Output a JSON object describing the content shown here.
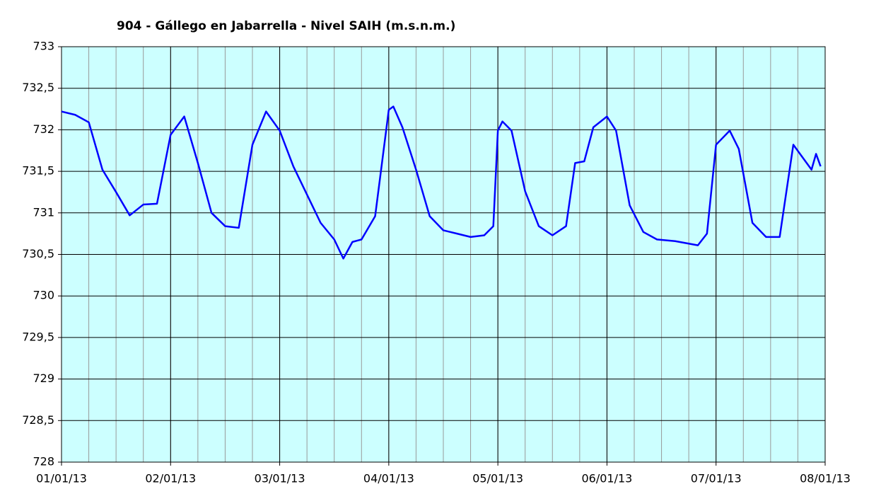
{
  "chart_data": {
    "type": "line",
    "title": "904 - Gállego en Jabarrella - Nivel SAIH (m.s.n.m.)",
    "x": [
      "2013-01-01T00:00",
      "2013-01-01T03:00",
      "2013-01-01T06:00",
      "2013-01-01T09:00",
      "2013-01-01T12:00",
      "2013-01-01T15:00",
      "2013-01-01T18:00",
      "2013-01-01T21:00",
      "2013-01-02T00:00",
      "2013-01-02T03:00",
      "2013-01-02T06:00",
      "2013-01-02T09:00",
      "2013-01-02T12:00",
      "2013-01-02T15:00",
      "2013-01-02T18:00",
      "2013-01-02T21:00",
      "2013-01-03T00:00",
      "2013-01-03T03:00",
      "2013-01-03T06:00",
      "2013-01-03T09:00",
      "2013-01-03T12:00",
      "2013-01-03T14:00",
      "2013-01-03T16:00",
      "2013-01-03T18:00",
      "2013-01-03T21:00",
      "2013-01-04T00:00",
      "2013-01-04T01:00",
      "2013-01-04T03:00",
      "2013-01-04T06:00",
      "2013-01-04T09:00",
      "2013-01-04T12:00",
      "2013-01-04T15:00",
      "2013-01-04T18:00",
      "2013-01-04T21:00",
      "2013-01-04T23:00",
      "2013-01-05T00:00",
      "2013-01-05T01:00",
      "2013-01-05T03:00",
      "2013-01-05T06:00",
      "2013-01-05T09:00",
      "2013-01-05T12:00",
      "2013-01-05T15:00",
      "2013-01-05T17:00",
      "2013-01-05T19:00",
      "2013-01-05T21:00",
      "2013-01-06T00:00",
      "2013-01-06T02:00",
      "2013-01-06T05:00",
      "2013-01-06T08:00",
      "2013-01-06T11:00",
      "2013-01-06T15:00",
      "2013-01-06T20:00",
      "2013-01-06T22:00",
      "2013-01-07T00:00",
      "2013-01-07T03:00",
      "2013-01-07T05:00",
      "2013-01-07T08:00",
      "2013-01-07T11:00",
      "2013-01-07T14:00",
      "2013-01-07T17:00",
      "2013-01-07T21:00",
      "2013-01-07T22:00",
      "2013-01-07T23:00"
    ],
    "series": [
      {
        "name": "Nivel SAIH",
        "color": "#0000ff",
        "values": [
          732.22,
          732.18,
          732.09,
          731.52,
          731.25,
          730.97,
          731.1,
          731.11,
          731.94,
          732.16,
          731.6,
          731.0,
          730.84,
          730.82,
          731.82,
          732.22,
          731.99,
          731.56,
          731.22,
          730.88,
          730.68,
          730.45,
          730.65,
          730.68,
          730.96,
          732.24,
          732.28,
          732.03,
          731.52,
          730.96,
          730.79,
          730.75,
          730.71,
          730.73,
          730.84,
          731.99,
          732.1,
          731.99,
          731.26,
          730.84,
          730.73,
          730.84,
          731.6,
          731.62,
          732.03,
          732.16,
          731.99,
          731.09,
          730.77,
          730.68,
          730.66,
          730.61,
          730.75,
          731.82,
          731.99,
          731.77,
          730.88,
          730.71,
          730.71,
          731.82,
          731.52,
          731.71,
          731.56
        ]
      }
    ],
    "xlim": [
      "2013-01-01",
      "2013-01-08"
    ],
    "xticks": [
      {
        "value": "2013-01-01",
        "label": "01/01/13"
      },
      {
        "value": "2013-01-02",
        "label": "02/01/13"
      },
      {
        "value": "2013-01-03",
        "label": "03/01/13"
      },
      {
        "value": "2013-01-04",
        "label": "04/01/13"
      },
      {
        "value": "2013-01-05",
        "label": "05/01/13"
      },
      {
        "value": "2013-01-06",
        "label": "06/01/13"
      },
      {
        "value": "2013-01-07",
        "label": "07/01/13"
      },
      {
        "value": "2013-01-08",
        "label": "08/01/13"
      }
    ],
    "minor_grid_hours": 6,
    "ylim": [
      728,
      733
    ],
    "yticks": [
      728,
      {
        "value": 728.5,
        "label": "728,5"
      },
      729,
      {
        "value": 729.5,
        "label": "729,5"
      },
      730,
      {
        "value": 730.5,
        "label": "730,5"
      },
      731,
      {
        "value": 731.5,
        "label": "731,5"
      },
      732,
      {
        "value": 732.5,
        "label": "732,5"
      },
      733
    ],
    "grid": true
  }
}
